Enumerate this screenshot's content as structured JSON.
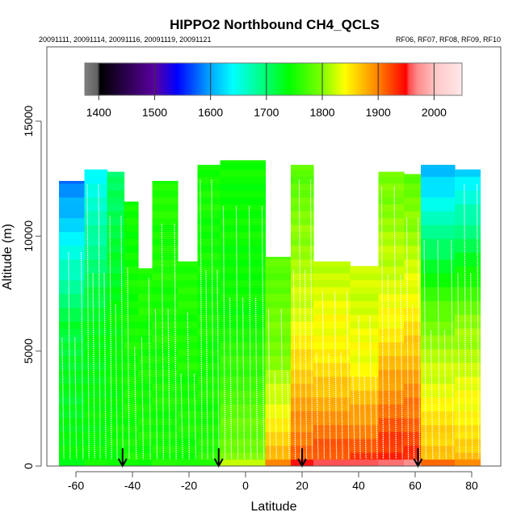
{
  "chart_data": {
    "type": "heatmap",
    "title": "HIPPO2 Northbound CH4_QCLS",
    "subtitle_left": "20091111, 20091114, 20091116, 20091119, 20091121",
    "subtitle_right": "RF06, RF07, RF08, RF09, RF10",
    "xlabel": "Latitude",
    "ylabel": "Altitude (m)",
    "xlim": [
      -67,
      94
    ],
    "ylim": [
      0,
      18200
    ],
    "x_ticks": [
      -60,
      -40,
      -20,
      0,
      20,
      40,
      60,
      80
    ],
    "x_tick_labels": [
      "-60",
      "-40",
      "-20",
      "0",
      "20",
      "40",
      "60",
      "80"
    ],
    "y_ticks": [
      0,
      5000,
      10000,
      15000
    ],
    "y_tick_labels": [
      "0",
      "5000",
      "10000",
      "15000"
    ],
    "grid": false,
    "colorbar": {
      "placement": "top-inside",
      "range": [
        1375,
        2050
      ],
      "ticks": [
        1400,
        1500,
        1600,
        1700,
        1800,
        1900,
        2000
      ],
      "tick_labels": [
        "1400",
        "1500",
        "1600",
        "1700",
        "1800",
        "1900",
        "2000"
      ],
      "stops": [
        {
          "value": 1375,
          "color": "#808080"
        },
        {
          "value": 1398,
          "color": "#606060"
        },
        {
          "value": 1402,
          "color": "#000000"
        },
        {
          "value": 1500,
          "color": "#5a00a0"
        },
        {
          "value": 1540,
          "color": "#0000ff"
        },
        {
          "value": 1600,
          "color": "#00a8ff"
        },
        {
          "value": 1640,
          "color": "#00ffff"
        },
        {
          "value": 1700,
          "color": "#00ff70"
        },
        {
          "value": 1740,
          "color": "#00ff00"
        },
        {
          "value": 1800,
          "color": "#80ff00"
        },
        {
          "value": 1840,
          "color": "#ffff00"
        },
        {
          "value": 1900,
          "color": "#ff8000"
        },
        {
          "value": 1950,
          "color": "#ff0000"
        },
        {
          "value": 1955,
          "color": "#ff4a4a"
        },
        {
          "value": 1970,
          "color": "#ff8a8a"
        },
        {
          "value": 1990,
          "color": "#ffadad"
        },
        {
          "value": 2005,
          "color": "#ffcaca"
        },
        {
          "value": 2030,
          "color": "#ffdada"
        },
        {
          "value": 2050,
          "color": "#ffeaea"
        }
      ]
    },
    "curtain_columns": [
      {
        "lat_from": -66,
        "lat_to": -57,
        "top": 12400,
        "upper_value": 1580,
        "mid_value": 1720,
        "low_value": 1740
      },
      {
        "lat_from": -57,
        "lat_to": -49,
        "top": 12900,
        "upper_value": 1640,
        "mid_value": 1730,
        "low_value": 1745
      },
      {
        "lat_from": -49,
        "lat_to": -43,
        "top": 12800,
        "upper_value": 1700,
        "mid_value": 1740,
        "low_value": 1745
      },
      {
        "lat_from": -43,
        "lat_to": -38,
        "top": 11500,
        "upper_value": 1745,
        "mid_value": 1750,
        "low_value": 1750
      },
      {
        "lat_from": -38,
        "lat_to": -33,
        "top": 8600,
        "upper_value": 1755,
        "mid_value": 1750,
        "low_value": 1750
      },
      {
        "lat_from": -33,
        "lat_to": -24,
        "top": 12400,
        "upper_value": 1755,
        "mid_value": 1752,
        "low_value": 1750
      },
      {
        "lat_from": -24,
        "lat_to": -17,
        "top": 8900,
        "upper_value": 1755,
        "mid_value": 1752,
        "low_value": 1750
      },
      {
        "lat_from": -17,
        "lat_to": -9,
        "top": 13100,
        "upper_value": 1750,
        "mid_value": 1748,
        "low_value": 1755
      },
      {
        "lat_from": -9,
        "lat_to": 7,
        "top": 13300,
        "upper_value": 1745,
        "mid_value": 1745,
        "low_value": 1800
      },
      {
        "lat_from": 7,
        "lat_to": 16,
        "top": 9100,
        "upper_value": 1780,
        "mid_value": 1800,
        "low_value": 1880
      },
      {
        "lat_from": 16,
        "lat_to": 24,
        "top": 13100,
        "upper_value": 1780,
        "mid_value": 1830,
        "low_value": 1920
      },
      {
        "lat_from": 24,
        "lat_to": 37,
        "top": 8900,
        "upper_value": 1820,
        "mid_value": 1850,
        "low_value": 1930
      },
      {
        "lat_from": 37,
        "lat_to": 47,
        "top": 8700,
        "upper_value": 1820,
        "mid_value": 1840,
        "low_value": 1935
      },
      {
        "lat_from": 47,
        "lat_to": 56,
        "top": 12800,
        "upper_value": 1790,
        "mid_value": 1840,
        "low_value": 1945
      },
      {
        "lat_from": 56,
        "lat_to": 62,
        "top": 12700,
        "upper_value": 1780,
        "mid_value": 1850,
        "low_value": 1940
      },
      {
        "lat_from": 62,
        "lat_to": 74,
        "top": 13100,
        "upper_value": 1600,
        "mid_value": 1790,
        "low_value": 1880
      },
      {
        "lat_from": 74,
        "lat_to": 83,
        "top": 12900,
        "upper_value": 1620,
        "mid_value": 1800,
        "low_value": 1870
      }
    ],
    "profile_markers_lat": [
      -43.5,
      -9.5,
      20,
      61
    ]
  }
}
